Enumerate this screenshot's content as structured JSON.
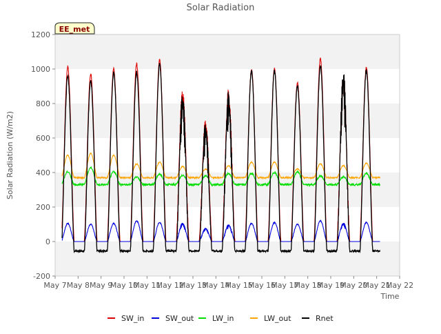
{
  "chart_data": {
    "type": "line",
    "title": "Solar Radiation",
    "xlabel": "Time",
    "ylabel": "Solar Radiation (W/m2)",
    "site_badge": "EE_met",
    "xlim": [
      7,
      22
    ],
    "ylim": [
      -200,
      1200
    ],
    "x_ticks": [
      {
        "value": 7,
        "label": "May 7"
      },
      {
        "value": 8,
        "label": "May 8"
      },
      {
        "value": 9,
        "label": "May 9"
      },
      {
        "value": 10,
        "label": "May 10"
      },
      {
        "value": 11,
        "label": "May 11"
      },
      {
        "value": 12,
        "label": "May 12"
      },
      {
        "value": 13,
        "label": "May 13"
      },
      {
        "value": 14,
        "label": "May 14"
      },
      {
        "value": 15,
        "label": "May 15"
      },
      {
        "value": 16,
        "label": "May 16"
      },
      {
        "value": 17,
        "label": "May 17"
      },
      {
        "value": 18,
        "label": "May 18"
      },
      {
        "value": 19,
        "label": "May 19"
      },
      {
        "value": 20,
        "label": "May 20"
      },
      {
        "value": 21,
        "label": "May 21"
      },
      {
        "value": 22,
        "label": "May 22"
      }
    ],
    "y_ticks": [
      -200,
      0,
      200,
      400,
      600,
      800,
      1000,
      1200
    ],
    "grid": "horizontal bands",
    "legend_position": "bottom",
    "data_start_day": 7.3,
    "data_end_day": 21.15,
    "daily_peaks": [
      {
        "day": 7,
        "sw_in": 1010,
        "sw_out": 105,
        "lw_in": 405,
        "lw_out": 500,
        "rnet": 960
      },
      {
        "day": 8,
        "sw_in": 970,
        "sw_out": 100,
        "lw_in": 430,
        "lw_out": 510,
        "rnet": 930
      },
      {
        "day": 9,
        "sw_in": 1000,
        "sw_out": 105,
        "lw_in": 405,
        "lw_out": 500,
        "rnet": 980
      },
      {
        "day": 10,
        "sw_in": 1030,
        "sw_out": 120,
        "lw_in": 375,
        "lw_out": 450,
        "rnet": 980
      },
      {
        "day": 11,
        "sw_in": 1050,
        "sw_out": 110,
        "lw_in": 390,
        "lw_out": 460,
        "rnet": 1030
      },
      {
        "day": 12,
        "sw_in": 900,
        "sw_out": 110,
        "lw_in": 385,
        "lw_out": 435,
        "rnet": 870
      },
      {
        "day": 13,
        "sw_in": 720,
        "sw_out": 80,
        "lw_in": 380,
        "lw_out": 420,
        "rnet": 700
      },
      {
        "day": 14,
        "sw_in": 890,
        "sw_out": 100,
        "lw_in": 395,
        "lw_out": 440,
        "rnet": 870
      },
      {
        "day": 15,
        "sw_in": 1000,
        "sw_out": 105,
        "lw_in": 395,
        "lw_out": 460,
        "rnet": 990
      },
      {
        "day": 16,
        "sw_in": 1000,
        "sw_out": 110,
        "lw_in": 400,
        "lw_out": 460,
        "rnet": 990
      },
      {
        "day": 17,
        "sw_in": 920,
        "sw_out": 100,
        "lw_in": 405,
        "lw_out": 420,
        "rnet": 900
      },
      {
        "day": 18,
        "sw_in": 1060,
        "sw_out": 120,
        "lw_in": 380,
        "lw_out": 450,
        "rnet": 1020
      },
      {
        "day": 19,
        "sw_in": 990,
        "sw_out": 110,
        "lw_in": 375,
        "lw_out": 440,
        "rnet": 1000
      },
      {
        "day": 20,
        "sw_in": 1010,
        "sw_out": 110,
        "lw_in": 395,
        "lw_out": 455,
        "rnet": 990
      }
    ],
    "night_values": {
      "sw_in": 0,
      "sw_out": 0,
      "lw_in": 330,
      "lw_out": 370,
      "rnet": -55
    },
    "series": [
      {
        "key": "sw_in",
        "name": "SW_in",
        "color": "#dd0000"
      },
      {
        "key": "sw_out",
        "name": "SW_out",
        "color": "#0000dd"
      },
      {
        "key": "lw_in",
        "name": "LW_in",
        "color": "#00dd00"
      },
      {
        "key": "lw_out",
        "name": "LW_out",
        "color": "#ffa500"
      },
      {
        "key": "rnet",
        "name": "Rnet",
        "color": "#000000"
      }
    ]
  }
}
